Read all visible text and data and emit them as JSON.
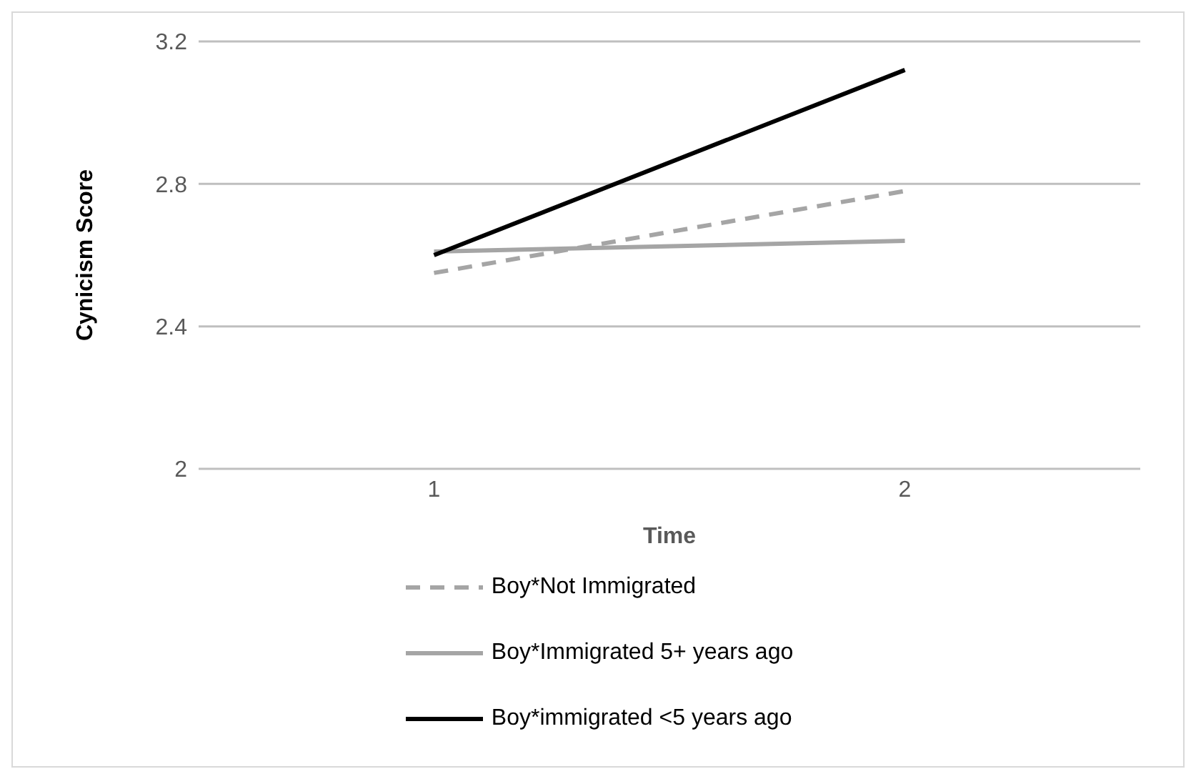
{
  "chart_data": {
    "type": "line",
    "xlabel": "Time",
    "ylabel": "Cynicism Score",
    "categories": [
      "1",
      "2"
    ],
    "series": [
      {
        "name": "Boy*Not Immigrated",
        "color": "#a5a5a5",
        "line_style": "dashed",
        "values": [
          2.55,
          2.78
        ]
      },
      {
        "name": "Boy*Immigrated 5+ years ago",
        "color": "#a5a5a5",
        "line_style": "solid",
        "values": [
          2.61,
          2.64
        ]
      },
      {
        "name": "Boy*immigrated <5 years ago",
        "color": "#000000",
        "line_style": "solid",
        "values": [
          2.6,
          3.12
        ]
      }
    ],
    "ylim": [
      2,
      3.2
    ],
    "yticks": [
      2,
      2.4,
      2.8,
      3.2
    ],
    "grid": "y",
    "legend": "bottom",
    "marker": "none"
  }
}
